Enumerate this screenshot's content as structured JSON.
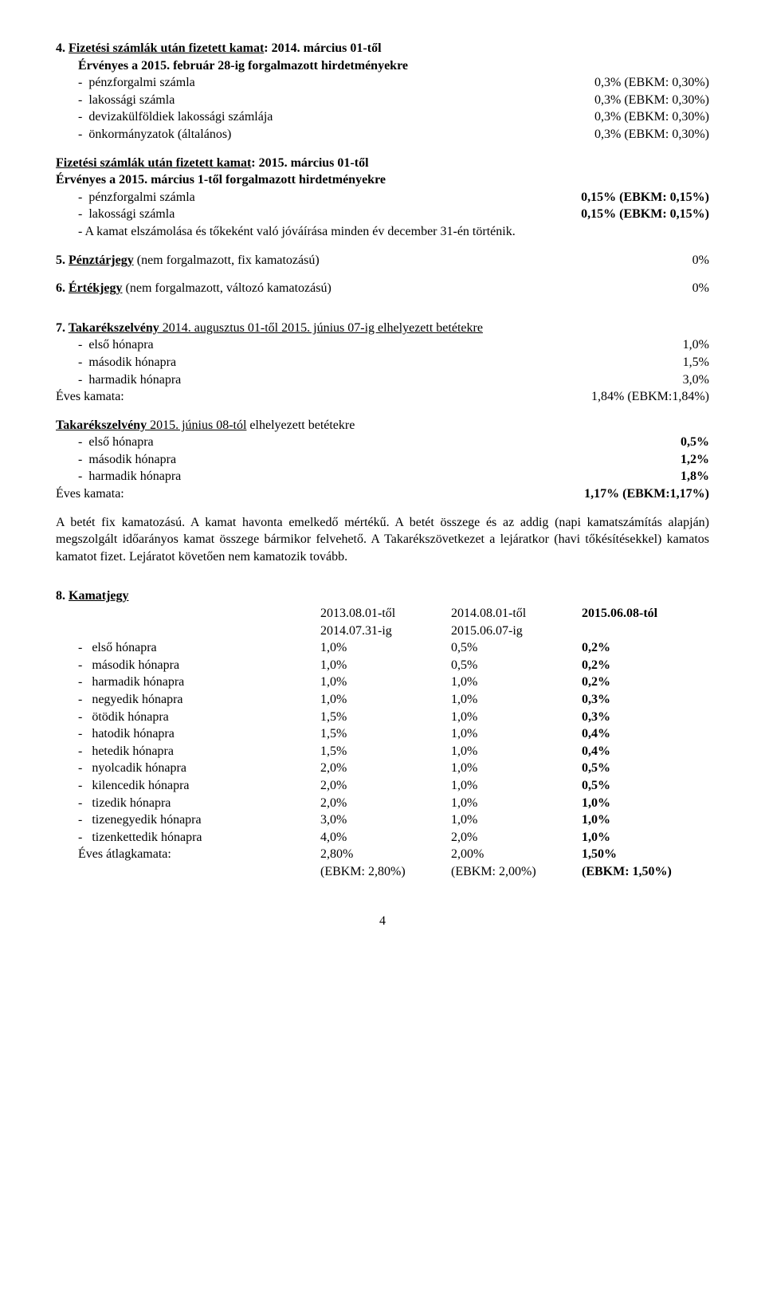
{
  "sec4": {
    "heading_num": "4.",
    "heading_title": "Fizetési számlák után fizetett kamat",
    "heading_suffix": ": 2014. március 01-től",
    "subtitle": "Érvényes a 2015. február 28-ig forgalmazott hirdetményekre",
    "rows": [
      {
        "label": "pénzforgalmi számla",
        "val": "0,3% (EBKM: 0,30%)"
      },
      {
        "label": "lakossági számla",
        "val": "0,3% (EBKM: 0,30%)"
      },
      {
        "label": "devizakülföldiek lakossági számlája",
        "val": "0,3% (EBKM: 0,30%)"
      },
      {
        "label": "önkormányzatok (általános)",
        "val": "0,3% (EBKM: 0,30%)"
      }
    ]
  },
  "sec4b": {
    "heading_title": "Fizetési számlák után fizetett kamat",
    "heading_suffix": ": 2015. március 01-től",
    "subtitle": "Érvényes a 2015. március 1-től forgalmazott hirdetményekre",
    "rows": [
      {
        "label": "pénzforgalmi számla",
        "val": "0,15% (EBKM: 0,15%)"
      },
      {
        "label": "lakossági számla",
        "val": "0,15% (EBKM: 0,15%)"
      }
    ],
    "note": "- A kamat elszámolása és tőkeként való jóváírása minden év december 31-én történik."
  },
  "sec5": {
    "heading_num": "5.",
    "label": "Pénztárjegy",
    "suffix": " (nem forgalmazott, fix kamatozású)",
    "val": "0%"
  },
  "sec6": {
    "heading_num": "6.",
    "label": "Értékjegy",
    "suffix": " (nem forgalmazott, változó kamatozású)",
    "val": "0%"
  },
  "sec7": {
    "heading_num": "7.",
    "title_a": "Takarékszelvény",
    "suffix_a": " 2014. augusztus 01-től 2015. június 07-ig elhelyezett betétekre",
    "rows_a": [
      {
        "label": "első hónapra",
        "val": "1,0%"
      },
      {
        "label": "második hónapra",
        "val": "1,5%"
      },
      {
        "label": "harmadik hónapra",
        "val": "3,0%"
      }
    ],
    "eves_a_label": "Éves kamata:",
    "eves_a_val": "1,84% (EBKM:1,84%)",
    "title_b": "Takarékszelvény",
    "suffix_b": " 2015. június 08-tól",
    "suffix_b2": " elhelyezett betétekre",
    "rows_b": [
      {
        "label": "első hónapra",
        "val": "0,5%"
      },
      {
        "label": "második hónapra",
        "val": "1,2%"
      },
      {
        "label": "harmadik hónapra",
        "val": "1,8%"
      }
    ],
    "eves_b_label": "Éves kamata:",
    "eves_b_val": "1,17% (EBKM:1,17%)",
    "para": "A betét fix kamatozású. A kamat havonta emelkedő mértékű. A betét összege és az addig (napi kamatszámítás alapján) megszolgált időarányos kamat összege bármikor felvehető. A Takarékszövetkezet a lejáratkor (havi tőkésítésekkel) kamatos kamatot fizet. Lejáratot követően nem kamatozik tovább."
  },
  "sec8": {
    "heading_num": "8.",
    "title": "Kamatjegy",
    "col_headers": [
      {
        "top": "2013.08.01-től",
        "bot": "2014.07.31-ig",
        "bold": false
      },
      {
        "top": "2014.08.01-től",
        "bot": "2015.06.07-ig",
        "bold": false
      },
      {
        "top": "2015.06.08-tól",
        "bot": "",
        "bold": true
      }
    ],
    "rows": [
      {
        "label": "első hónapra",
        "c": [
          "1,0%",
          "0,5%",
          "0,2%"
        ]
      },
      {
        "label": "második hónapra",
        "c": [
          "1,0%",
          "0,5%",
          "0,2%"
        ]
      },
      {
        "label": "harmadik hónapra",
        "c": [
          "1,0%",
          "1,0%",
          "0,2%"
        ]
      },
      {
        "label": "negyedik hónapra",
        "c": [
          "1,0%",
          "1,0%",
          "0,3%"
        ]
      },
      {
        "label": "ötödik hónapra",
        "c": [
          "1,5%",
          "1,0%",
          "0,3%"
        ]
      },
      {
        "label": "hatodik hónapra",
        "c": [
          "1,5%",
          "1,0%",
          "0,4%"
        ]
      },
      {
        "label": "hetedik hónapra",
        "c": [
          "1,5%",
          "1,0%",
          "0,4%"
        ]
      },
      {
        "label": "nyolcadik hónapra",
        "c": [
          "2,0%",
          "1,0%",
          "0,5%"
        ]
      },
      {
        "label": "kilencedik hónapra",
        "c": [
          "2,0%",
          "1,0%",
          "0,5%"
        ]
      },
      {
        "label": "tizedik hónapra",
        "c": [
          "2,0%",
          "1,0%",
          "1,0%"
        ]
      },
      {
        "label": "tizenegyedik hónapra",
        "c": [
          "3,0%",
          "1,0%",
          "1,0%"
        ]
      },
      {
        "label": "tizenkettedik hónapra",
        "c": [
          "4,0%",
          "2,0%",
          "1,0%"
        ]
      }
    ],
    "avg_label": "Éves átlagkamata:",
    "avg": [
      "2,80%",
      "2,00%",
      "1,50%"
    ],
    "ebkm": [
      "(EBKM: 2,80%)",
      "(EBKM: 2,00%)",
      "(EBKM: 1,50%)"
    ]
  },
  "page_num": "4",
  "table_style": {
    "col_widths": [
      "40%",
      "20%",
      "20%",
      "20%"
    ],
    "bold_last_col": true
  }
}
